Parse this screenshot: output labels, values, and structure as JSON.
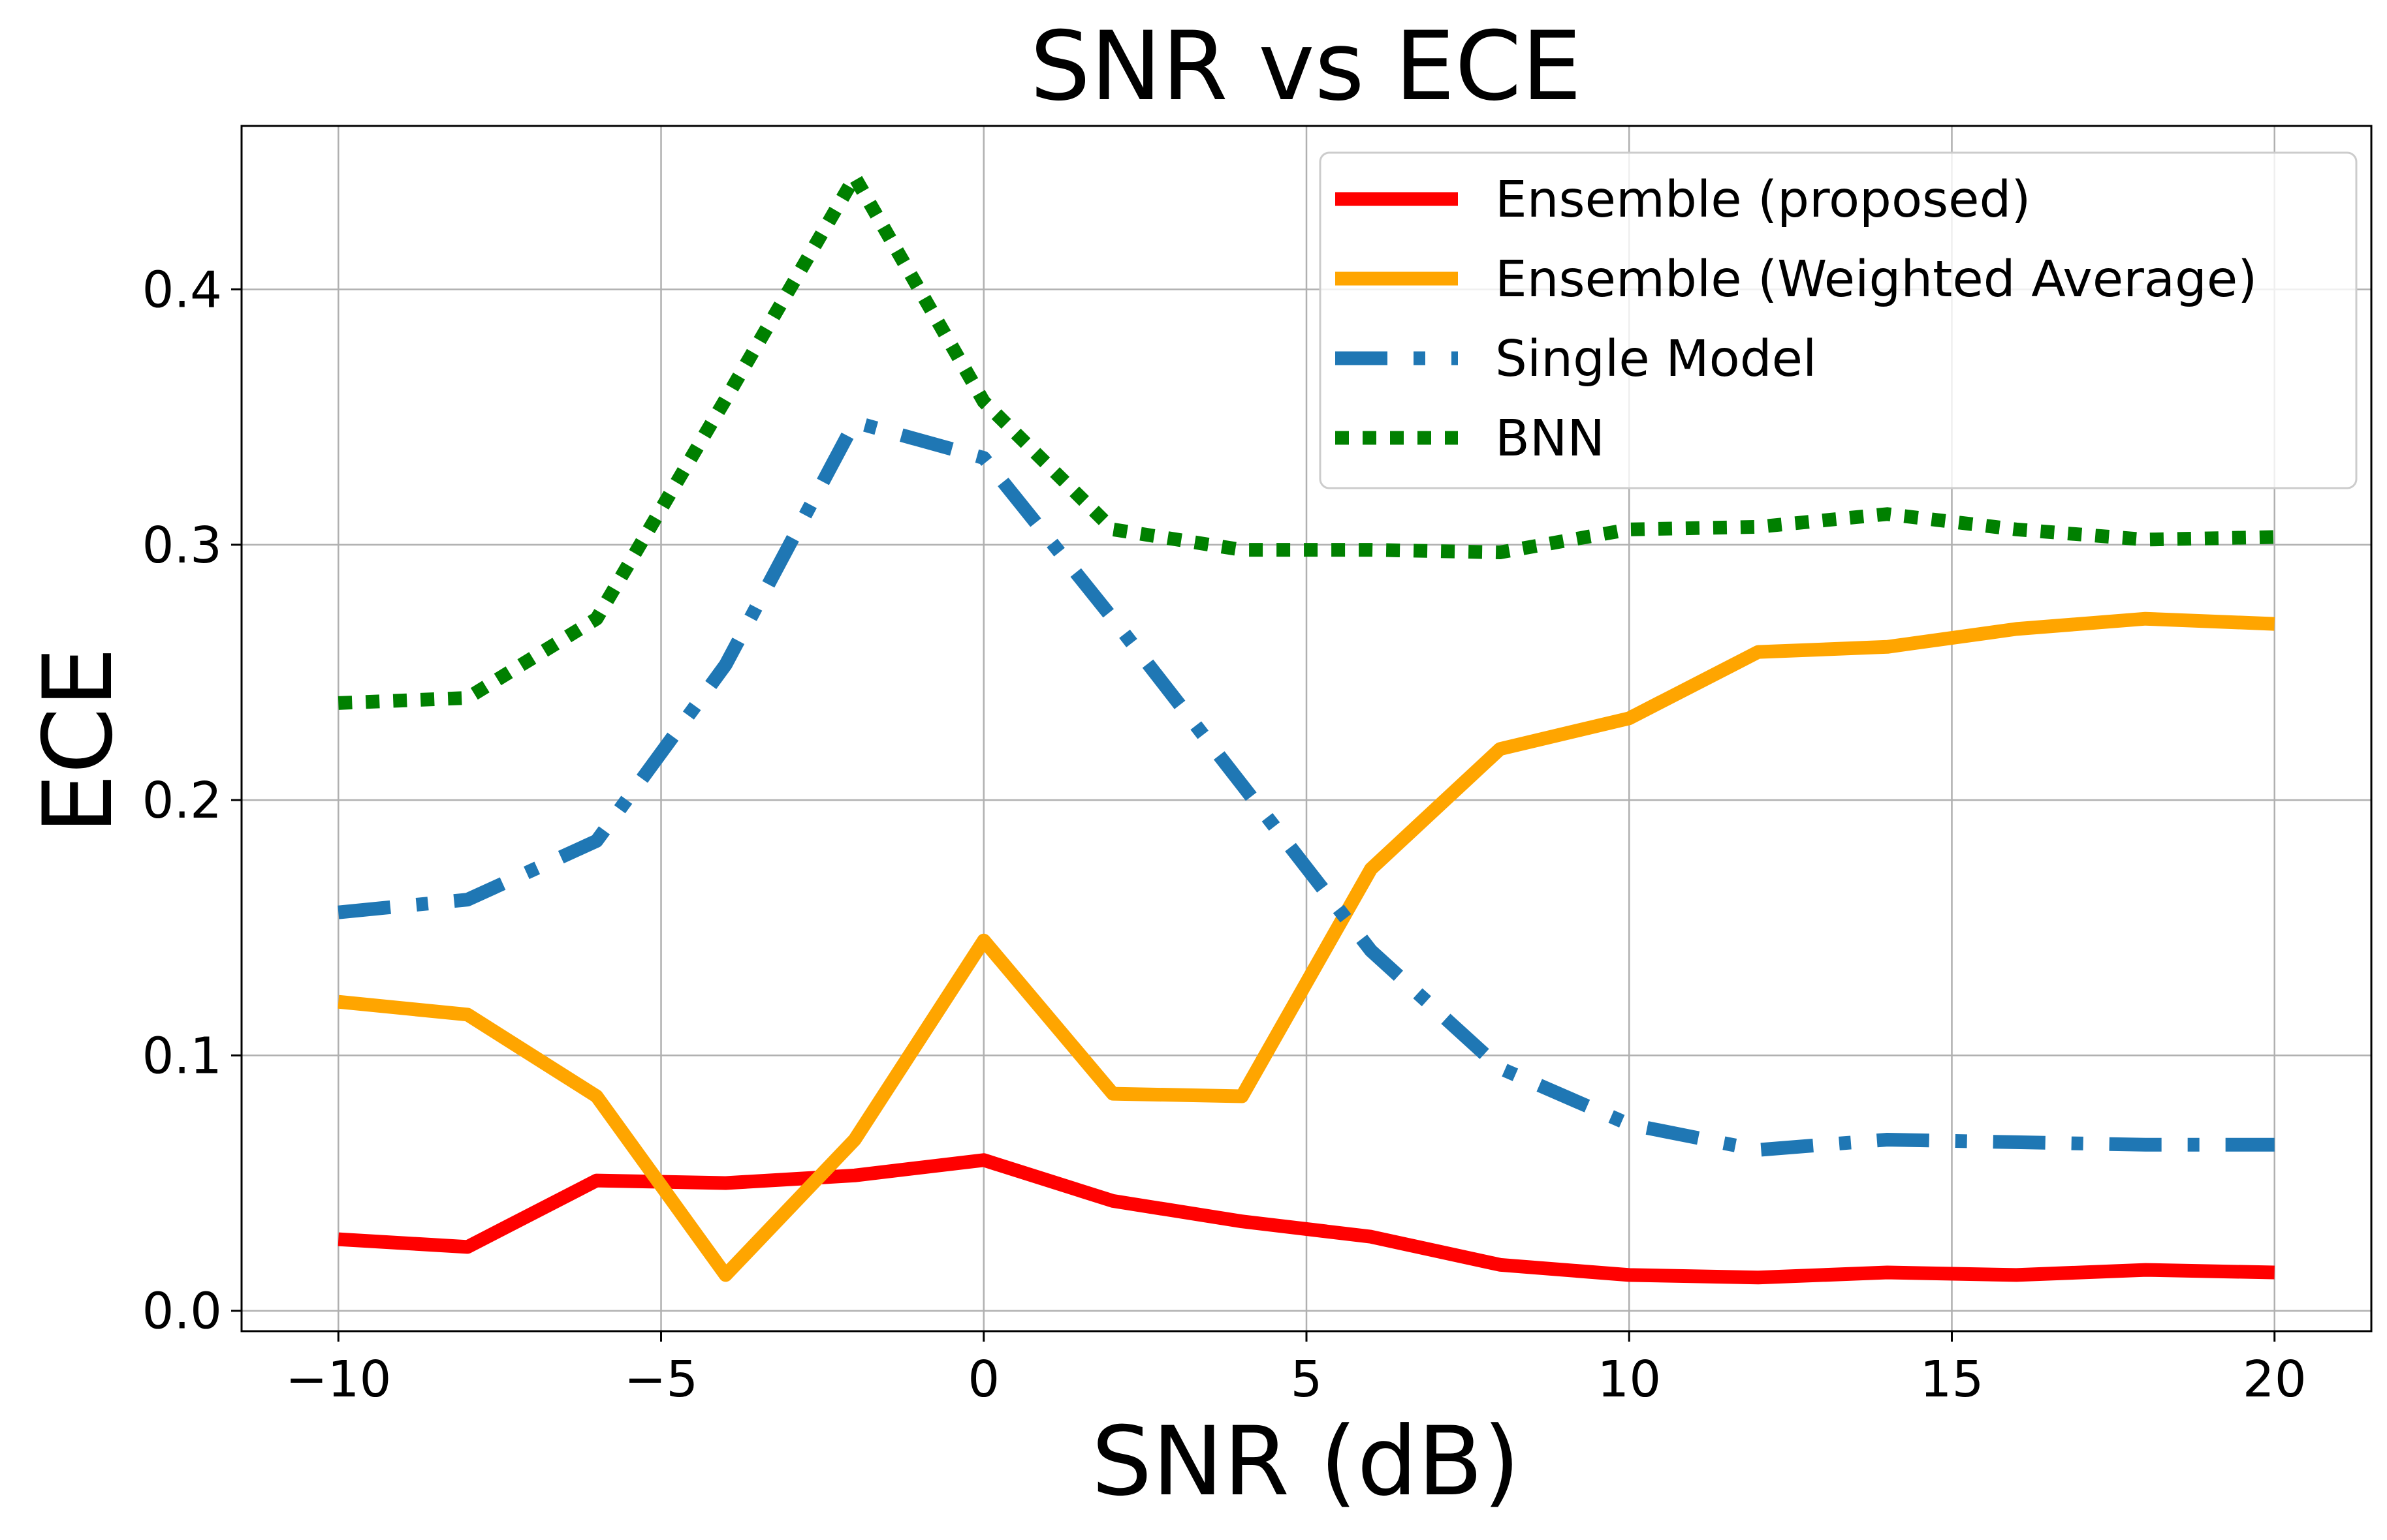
{
  "chart_data": {
    "type": "line",
    "title": "SNR vs ECE",
    "xlabel": "SNR (dB)",
    "ylabel": "ECE",
    "xlim": [
      -11.5,
      21.5
    ],
    "ylim": [
      -0.008,
      0.464
    ],
    "x_ticks": [
      -10,
      -5,
      0,
      5,
      10,
      15,
      20
    ],
    "x_tick_labels": [
      "−10",
      "−5",
      "0",
      "5",
      "10",
      "15",
      "20"
    ],
    "y_ticks": [
      0.0,
      0.1,
      0.2,
      0.3,
      0.4
    ],
    "y_tick_labels": [
      "0.0",
      "0.1",
      "0.2",
      "0.3",
      "0.4"
    ],
    "grid": true,
    "legend_position": "top-right",
    "x": [
      -10,
      -8,
      -6,
      -4,
      -2,
      0,
      2,
      4,
      6,
      8,
      10,
      12,
      14,
      16,
      18,
      20
    ],
    "series": [
      {
        "name": "Ensemble (proposed)",
        "color": "#ff0000",
        "style": "solid",
        "values": [
          0.028,
          0.025,
          0.051,
          0.05,
          0.053,
          0.059,
          0.043,
          0.035,
          0.029,
          0.018,
          0.014,
          0.013,
          0.015,
          0.014,
          0.016,
          0.015
        ]
      },
      {
        "name": "Ensemble (Weighted Average)",
        "color": "#ffa500",
        "style": "solid",
        "values": [
          0.121,
          0.116,
          0.084,
          0.014,
          0.067,
          0.145,
          0.085,
          0.084,
          0.173,
          0.22,
          0.232,
          0.258,
          0.26,
          0.267,
          0.271,
          0.269
        ]
      },
      {
        "name": "Single Model",
        "color": "#1f77b4",
        "style": "dashdot",
        "values": [
          0.156,
          0.161,
          0.184,
          0.253,
          0.348,
          0.334,
          0.271,
          0.206,
          0.141,
          0.095,
          0.073,
          0.063,
          0.067,
          0.066,
          0.065,
          0.065
        ]
      },
      {
        "name": "BNN",
        "color": "#008000",
        "style": "dotted",
        "values": [
          0.238,
          0.24,
          0.271,
          0.357,
          0.444,
          0.356,
          0.306,
          0.298,
          0.298,
          0.297,
          0.306,
          0.307,
          0.312,
          0.306,
          0.302,
          0.303
        ]
      }
    ]
  }
}
